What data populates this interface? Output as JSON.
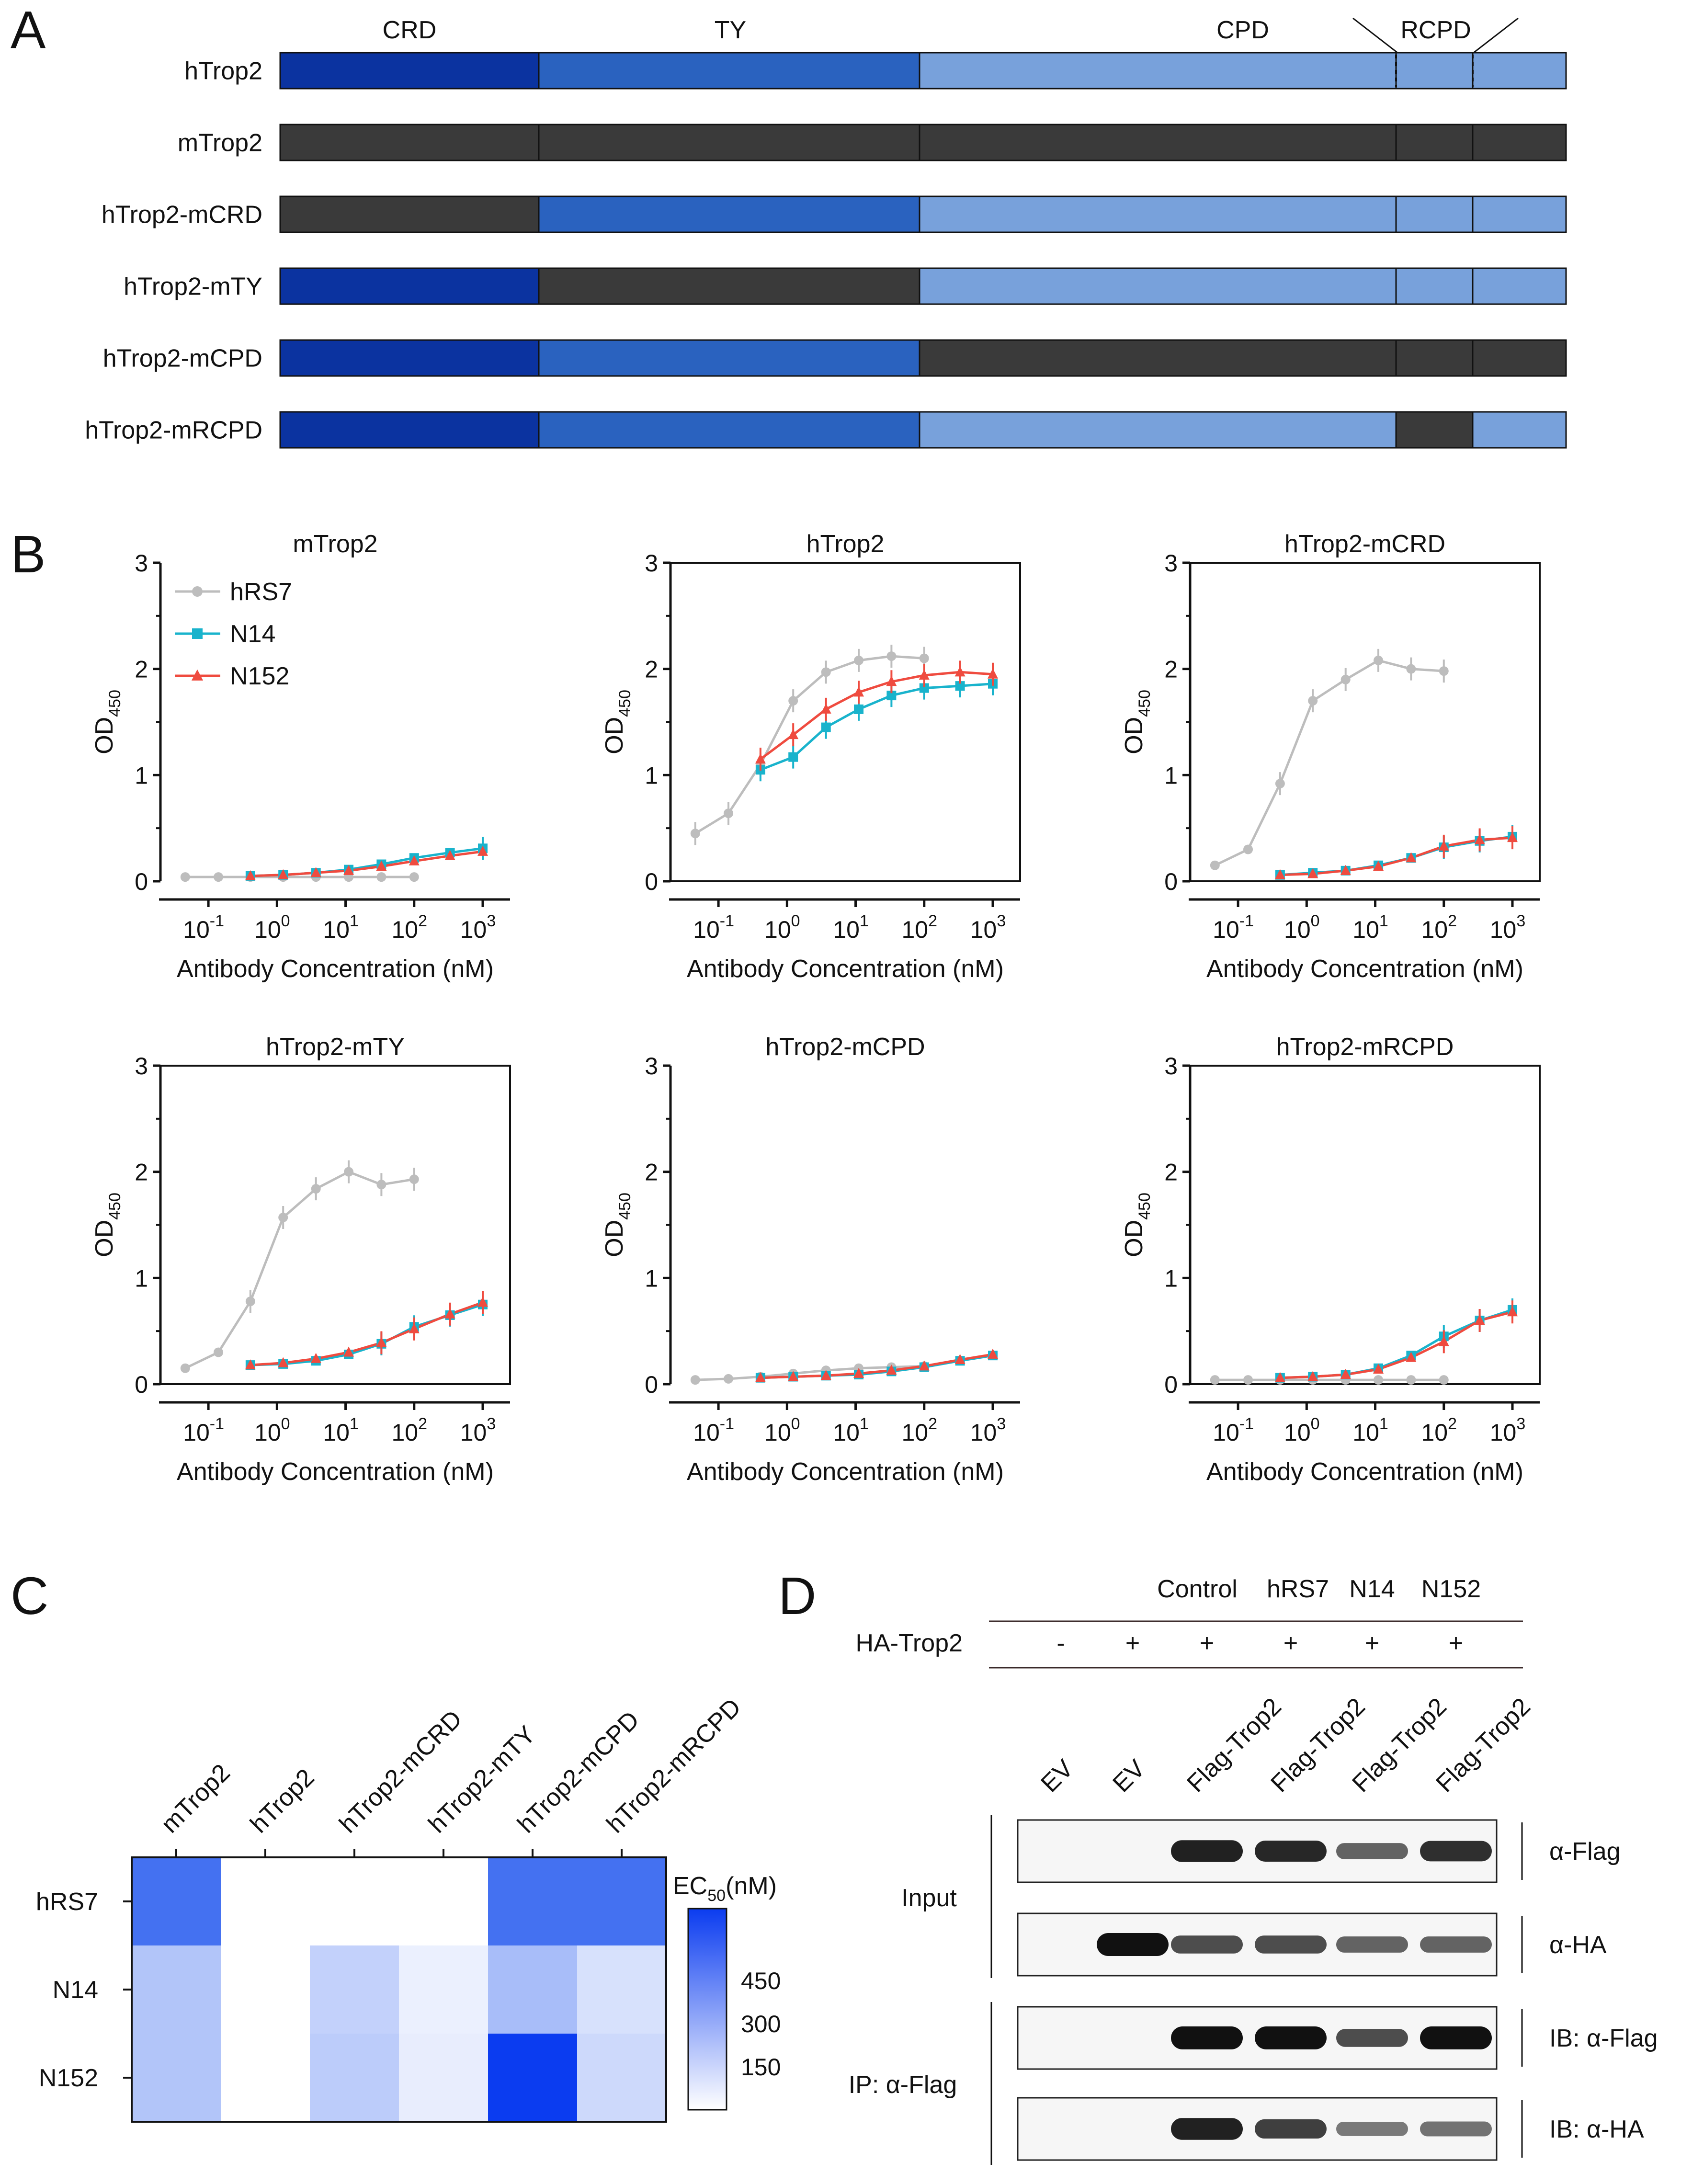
{
  "panels": {
    "A": "A",
    "B": "B",
    "C": "C",
    "D": "D"
  },
  "domain_labels": {
    "crd": "CRD",
    "ty": "TY",
    "cpd": "CPD",
    "rcpd": "RCPD"
  },
  "constructs": [
    {
      "name": "hTrop2",
      "segments": [
        "h-crd",
        "h-ty",
        "h-cpd",
        "h-cpd",
        "h-cpd"
      ],
      "dashed": true
    },
    {
      "name": "mTrop2",
      "segments": [
        "m",
        "m",
        "m",
        "m",
        "m"
      ]
    },
    {
      "name": "hTrop2-mCRD",
      "segments": [
        "m",
        "h-ty",
        "h-cpd",
        "h-cpd",
        "h-cpd"
      ]
    },
    {
      "name": "hTrop2-mTY",
      "segments": [
        "h-crd",
        "m",
        "h-cpd",
        "h-cpd",
        "h-cpd"
      ]
    },
    {
      "name": "hTrop2-mCPD",
      "segments": [
        "h-crd",
        "h-ty",
        "m",
        "m",
        "m"
      ]
    },
    {
      "name": "hTrop2-mRCPD",
      "segments": [
        "h-crd",
        "h-ty",
        "h-cpd",
        "m",
        "h-cpd"
      ]
    }
  ],
  "colors": {
    "h-crd": "#0b33a0",
    "h-ty": "#2a62bf",
    "h-cpd": "#78a1db",
    "m": "#3a3a3a",
    "hRS7": "#bdbdbd",
    "N14": "#19b3cc",
    "N152": "#ef4b3f",
    "heat_max": "#0b3cf0"
  },
  "chart_data": [
    {
      "type": "line",
      "title": "mTrop2",
      "xlabel": "Antibody Concentration (nM)",
      "ylabel": "OD",
      "ylabel_sub": "450",
      "ylim": [
        0,
        3
      ],
      "yticks": [
        "0",
        "1",
        "2",
        "3"
      ],
      "xlog": true,
      "xlim": [
        0.02,
        2500
      ],
      "xticks": [
        {
          "base": "10",
          "exp": "-1"
        },
        {
          "base": "10",
          "exp": "0"
        },
        {
          "base": "10",
          "exp": "1"
        },
        {
          "base": "10",
          "exp": "2"
        },
        {
          "base": "10",
          "exp": "3"
        }
      ],
      "legend": [
        "hRS7",
        "N14",
        "N152"
      ],
      "series": [
        {
          "name": "hRS7",
          "x": [
            0.046,
            0.14,
            0.41,
            1.23,
            3.7,
            11.1,
            33.3,
            100
          ],
          "y": [
            0.04,
            0.04,
            0.04,
            0.04,
            0.04,
            0.04,
            0.04,
            0.04
          ]
        },
        {
          "name": "N14",
          "x": [
            0.41,
            1.23,
            3.7,
            11.1,
            33.3,
            100,
            333,
            1000
          ],
          "y": [
            0.05,
            0.06,
            0.08,
            0.11,
            0.16,
            0.22,
            0.27,
            0.31
          ]
        },
        {
          "name": "N152",
          "x": [
            0.41,
            1.23,
            3.7,
            11.1,
            33.3,
            100,
            333,
            1000
          ],
          "y": [
            0.05,
            0.06,
            0.08,
            0.1,
            0.14,
            0.19,
            0.24,
            0.28
          ]
        }
      ]
    },
    {
      "type": "line",
      "title": "hTrop2",
      "xlabel": "Antibody Concentration (nM)",
      "ylabel": "OD",
      "ylabel_sub": "450",
      "ylim": [
        0,
        3
      ],
      "yticks": [
        "0",
        "1",
        "2",
        "3"
      ],
      "xlog": true,
      "xlim": [
        0.02,
        2500
      ],
      "xticks": [
        {
          "base": "10",
          "exp": "-1"
        },
        {
          "base": "10",
          "exp": "0"
        },
        {
          "base": "10",
          "exp": "1"
        },
        {
          "base": "10",
          "exp": "2"
        },
        {
          "base": "10",
          "exp": "3"
        }
      ],
      "series": [
        {
          "name": "hRS7",
          "x": [
            0.046,
            0.14,
            0.41,
            1.23,
            3.7,
            11.1,
            33.3,
            100
          ],
          "y": [
            0.45,
            0.64,
            1.1,
            1.7,
            1.97,
            2.08,
            2.12,
            2.1
          ]
        },
        {
          "name": "N14",
          "x": [
            0.41,
            1.23,
            3.7,
            11.1,
            33.3,
            100,
            333,
            1000
          ],
          "y": [
            1.05,
            1.17,
            1.45,
            1.62,
            1.75,
            1.82,
            1.84,
            1.86
          ]
        },
        {
          "name": "N152",
          "x": [
            0.41,
            1.23,
            3.7,
            11.1,
            33.3,
            100,
            333,
            1000
          ],
          "y": [
            1.15,
            1.38,
            1.62,
            1.78,
            1.88,
            1.94,
            1.97,
            1.95
          ]
        }
      ]
    },
    {
      "type": "line",
      "title": "hTrop2-mCRD",
      "xlabel": "Antibody Concentration (nM)",
      "ylabel": "OD",
      "ylabel_sub": "450",
      "ylim": [
        0,
        3
      ],
      "yticks": [
        "0",
        "1",
        "2",
        "3"
      ],
      "xlog": true,
      "xlim": [
        0.02,
        2500
      ],
      "xticks": [
        {
          "base": "10",
          "exp": "-1"
        },
        {
          "base": "10",
          "exp": "0"
        },
        {
          "base": "10",
          "exp": "1"
        },
        {
          "base": "10",
          "exp": "2"
        },
        {
          "base": "10",
          "exp": "3"
        }
      ],
      "series": [
        {
          "name": "hRS7",
          "x": [
            0.046,
            0.14,
            0.41,
            1.23,
            3.7,
            11.1,
            33.3,
            100
          ],
          "y": [
            0.15,
            0.3,
            0.92,
            1.7,
            1.9,
            2.08,
            2.0,
            1.98
          ]
        },
        {
          "name": "N14",
          "x": [
            0.41,
            1.23,
            3.7,
            11.1,
            33.3,
            100,
            333,
            1000
          ],
          "y": [
            0.06,
            0.08,
            0.1,
            0.15,
            0.22,
            0.32,
            0.38,
            0.42
          ]
        },
        {
          "name": "N152",
          "x": [
            0.41,
            1.23,
            3.7,
            11.1,
            33.3,
            100,
            333,
            1000
          ],
          "y": [
            0.06,
            0.07,
            0.1,
            0.14,
            0.22,
            0.33,
            0.39,
            0.41
          ]
        }
      ]
    },
    {
      "type": "line",
      "title": "hTrop2-mTY",
      "xlabel": "Antibody Concentration (nM)",
      "ylabel": "OD",
      "ylabel_sub": "450",
      "ylim": [
        0,
        3
      ],
      "yticks": [
        "0",
        "1",
        "2",
        "3"
      ],
      "xlog": true,
      "xlim": [
        0.02,
        2500
      ],
      "xticks": [
        {
          "base": "10",
          "exp": "-1"
        },
        {
          "base": "10",
          "exp": "0"
        },
        {
          "base": "10",
          "exp": "1"
        },
        {
          "base": "10",
          "exp": "2"
        },
        {
          "base": "10",
          "exp": "3"
        }
      ],
      "series": [
        {
          "name": "hRS7",
          "x": [
            0.046,
            0.14,
            0.41,
            1.23,
            3.7,
            11.1,
            33.3,
            100
          ],
          "y": [
            0.15,
            0.3,
            0.78,
            1.57,
            1.84,
            2.0,
            1.88,
            1.93
          ]
        },
        {
          "name": "N14",
          "x": [
            0.41,
            1.23,
            3.7,
            11.1,
            33.3,
            100,
            333,
            1000
          ],
          "y": [
            0.18,
            0.19,
            0.22,
            0.28,
            0.38,
            0.54,
            0.65,
            0.75
          ]
        },
        {
          "name": "N152",
          "x": [
            0.41,
            1.23,
            3.7,
            11.1,
            33.3,
            100,
            333,
            1000
          ],
          "y": [
            0.18,
            0.2,
            0.24,
            0.3,
            0.39,
            0.52,
            0.66,
            0.77
          ]
        }
      ]
    },
    {
      "type": "line",
      "title": "hTrop2-mCPD",
      "xlabel": "Antibody Concentration (nM)",
      "ylabel": "OD",
      "ylabel_sub": "450",
      "ylim": [
        0,
        3
      ],
      "yticks": [
        "0",
        "1",
        "2",
        "3"
      ],
      "xlog": true,
      "xlim": [
        0.02,
        2500
      ],
      "xticks": [
        {
          "base": "10",
          "exp": "-1"
        },
        {
          "base": "10",
          "exp": "0"
        },
        {
          "base": "10",
          "exp": "1"
        },
        {
          "base": "10",
          "exp": "2"
        },
        {
          "base": "10",
          "exp": "3"
        }
      ],
      "series": [
        {
          "name": "hRS7",
          "x": [
            0.046,
            0.14,
            0.41,
            1.23,
            3.7,
            11.1,
            33.3,
            100
          ],
          "y": [
            0.04,
            0.05,
            0.07,
            0.1,
            0.13,
            0.15,
            0.16,
            0.17
          ]
        },
        {
          "name": "N14",
          "x": [
            0.41,
            1.23,
            3.7,
            11.1,
            33.3,
            100,
            333,
            1000
          ],
          "y": [
            0.06,
            0.07,
            0.08,
            0.09,
            0.12,
            0.16,
            0.22,
            0.27
          ]
        },
        {
          "name": "N152",
          "x": [
            0.41,
            1.23,
            3.7,
            11.1,
            33.3,
            100,
            333,
            1000
          ],
          "y": [
            0.06,
            0.07,
            0.08,
            0.1,
            0.13,
            0.17,
            0.23,
            0.28
          ]
        }
      ]
    },
    {
      "type": "line",
      "title": "hTrop2-mRCPD",
      "xlabel": "Antibody Concentration (nM)",
      "ylabel": "OD",
      "ylabel_sub": "450",
      "ylim": [
        0,
        3
      ],
      "yticks": [
        "0",
        "1",
        "2",
        "3"
      ],
      "xlog": true,
      "xlim": [
        0.02,
        2500
      ],
      "xticks": [
        {
          "base": "10",
          "exp": "-1"
        },
        {
          "base": "10",
          "exp": "0"
        },
        {
          "base": "10",
          "exp": "1"
        },
        {
          "base": "10",
          "exp": "2"
        },
        {
          "base": "10",
          "exp": "3"
        }
      ],
      "series": [
        {
          "name": "hRS7",
          "x": [
            0.046,
            0.14,
            0.41,
            1.23,
            3.7,
            11.1,
            33.3,
            100
          ],
          "y": [
            0.04,
            0.04,
            0.04,
            0.04,
            0.04,
            0.04,
            0.04,
            0.04
          ]
        },
        {
          "name": "N14",
          "x": [
            0.41,
            1.23,
            3.7,
            11.1,
            33.3,
            100,
            333,
            1000
          ],
          "y": [
            0.06,
            0.07,
            0.09,
            0.15,
            0.27,
            0.45,
            0.6,
            0.7
          ]
        },
        {
          "name": "N152",
          "x": [
            0.41,
            1.23,
            3.7,
            11.1,
            33.3,
            100,
            333,
            1000
          ],
          "y": [
            0.06,
            0.07,
            0.09,
            0.14,
            0.25,
            0.4,
            0.6,
            0.68
          ]
        }
      ]
    },
    {
      "type": "heatmap",
      "columns": [
        "mTrop2",
        "hTrop2",
        "hTrop2-mCRD",
        "hTrop2-mTY",
        "hTrop2-mCPD",
        "hTrop2-mRCPD"
      ],
      "rows": [
        "hRS7",
        "N14",
        "N152"
      ],
      "values": [
        [
          560,
          0,
          0,
          0,
          560,
          560
        ],
        [
          230,
          0,
          180,
          60,
          260,
          120
        ],
        [
          230,
          0,
          200,
          70,
          900,
          150
        ]
      ],
      "colorbar_label": "EC",
      "colorbar_sub": "50",
      "colorbar_unit": "(nM)",
      "colorbar_ticks": [
        "450",
        "300",
        "150"
      ],
      "colorbar_tick_values": [
        450,
        300,
        150
      ],
      "zlim": [
        0,
        600
      ]
    }
  ],
  "blot": {
    "header_groups": [
      "Control",
      "hRS7",
      "N14",
      "N152"
    ],
    "row_label": "HA-Trop2",
    "signs": [
      "-",
      "+",
      "+",
      "+",
      "+",
      "+"
    ],
    "lanes": [
      "EV",
      "EV",
      "Flag-Trop2",
      "Flag-Trop2",
      "Flag-Trop2",
      "Flag-Trop2"
    ],
    "input_label": "Input",
    "ip_label": "IP: α-Flag",
    "strips": [
      {
        "label": "α-Flag",
        "bands": [
          0,
          0,
          0.9,
          0.85,
          0.45,
          0.8
        ]
      },
      {
        "label": "α-HA",
        "bands": [
          0,
          1.0,
          0.6,
          0.6,
          0.45,
          0.45
        ]
      },
      {
        "label": "IB: α-Flag",
        "bands": [
          0,
          0,
          1.0,
          1.0,
          0.6,
          1.0
        ]
      },
      {
        "label": "IB: α-HA",
        "bands": [
          0,
          0,
          0.9,
          0.7,
          0.3,
          0.35
        ]
      }
    ]
  }
}
